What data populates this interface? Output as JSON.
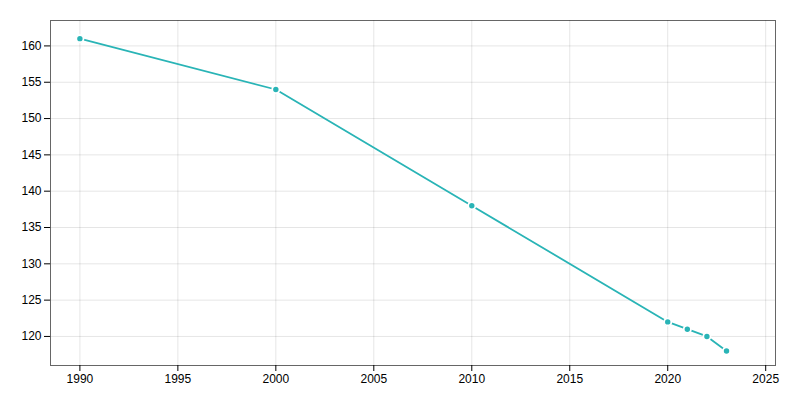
{
  "chart_data": {
    "type": "line",
    "x": [
      1990,
      2000,
      2010,
      2020,
      2021,
      2022,
      2023
    ],
    "values": [
      161,
      154,
      138,
      122,
      121,
      120,
      118
    ],
    "color": "#29b4b6",
    "marker": "circle",
    "xlim": [
      1988.5,
      2025.5
    ],
    "ylim": [
      116,
      163.5
    ],
    "xticks": [
      1990,
      1995,
      2000,
      2005,
      2010,
      2015,
      2020,
      2025
    ],
    "yticks": [
      120,
      125,
      130,
      135,
      140,
      145,
      150,
      155,
      160
    ],
    "grid": true
  }
}
